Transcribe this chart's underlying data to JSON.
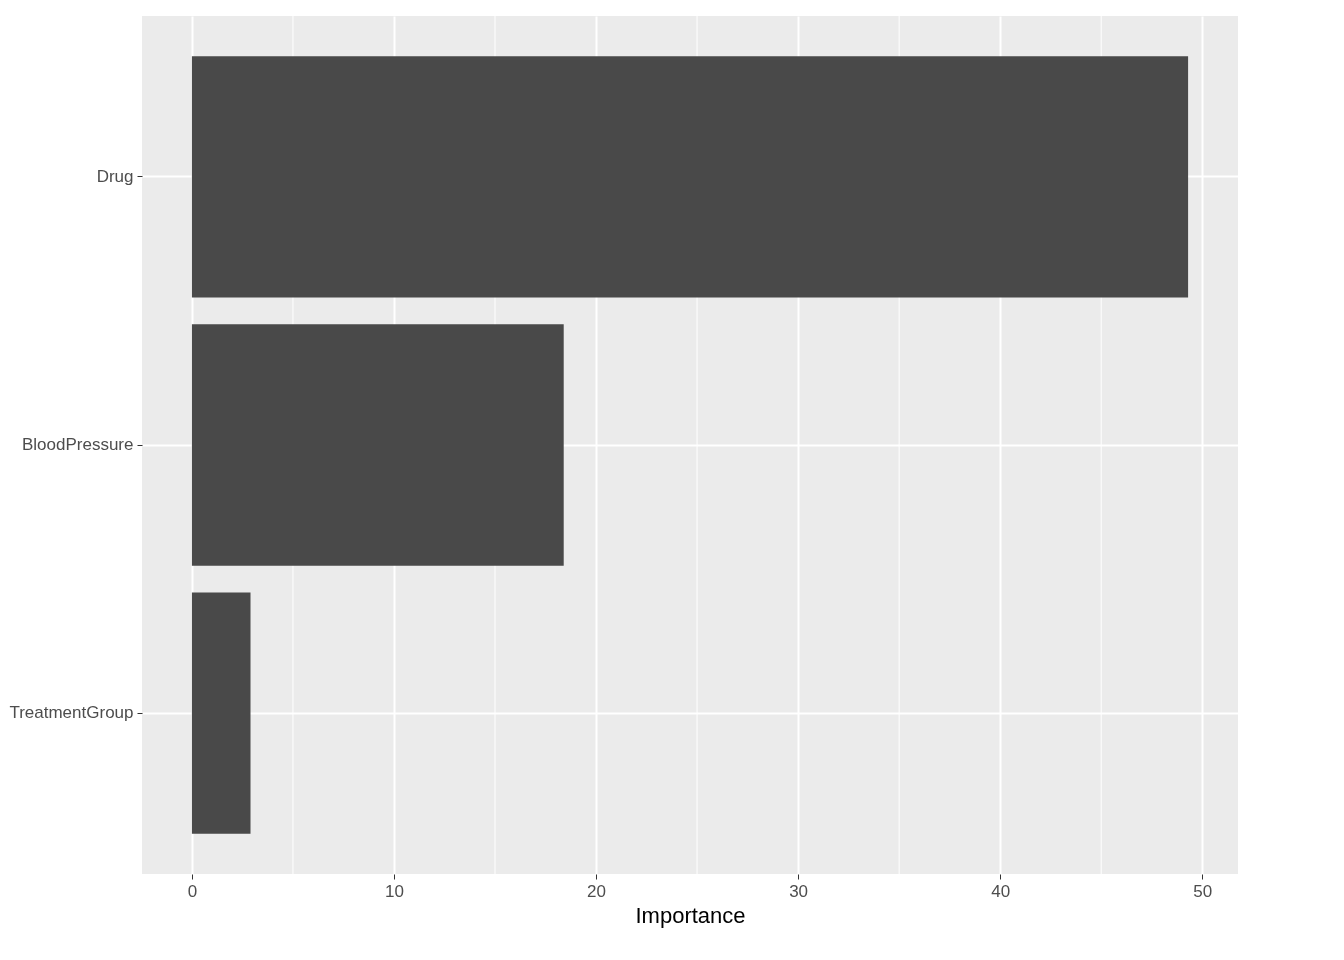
{
  "chart_data": {
    "type": "bar",
    "orientation": "horizontal",
    "xlabel": "Importance",
    "categories": [
      "Drug",
      "BloodPressure",
      "TreatmentGroup"
    ],
    "values": [
      49.3,
      18.4,
      2.9
    ],
    "color": "#494949",
    "xlim": [
      -2.47,
      51.77
    ],
    "xticks": [
      0,
      10,
      20,
      30,
      40,
      50
    ],
    "grid": true
  }
}
